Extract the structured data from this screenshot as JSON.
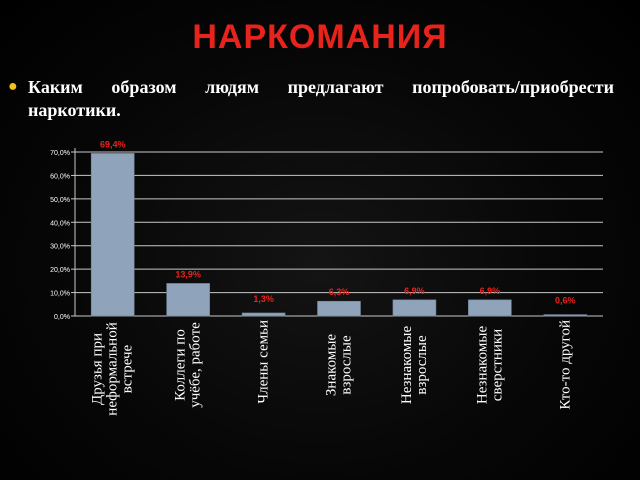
{
  "slide": {
    "title": "НАРКОМАНИЯ",
    "bullet": "Каким образом людям предлагают попробовать/приобрести наркотики."
  },
  "colors": {
    "title": "#e8231c",
    "bar": "#8fa3bb",
    "data_label": "#e8231c",
    "bullet": "#f0c020"
  },
  "chart_data": {
    "type": "bar",
    "categories": [
      "Друзья при неформальной встрече",
      "Коллеги по учёбе, работе",
      "Члены семьи",
      "Знакомые взрослые",
      "Незнакомые взрослые",
      "Незнакомые сверстники",
      "Кто-то другой"
    ],
    "values": [
      69.4,
      13.9,
      1.3,
      6.3,
      6.9,
      6.9,
      0.6
    ],
    "data_labels": [
      "69,4%",
      "13,9%",
      "1,3%",
      "6,3%",
      "6,9%",
      "6,9%",
      "0,6%"
    ],
    "yticks": [
      "0,0%",
      "10,0%",
      "20,0%",
      "30,0%",
      "40,0%",
      "50,0%",
      "60,0%",
      "70,0%"
    ],
    "ylim": [
      0,
      70
    ],
    "grid": true,
    "legend": "none"
  }
}
